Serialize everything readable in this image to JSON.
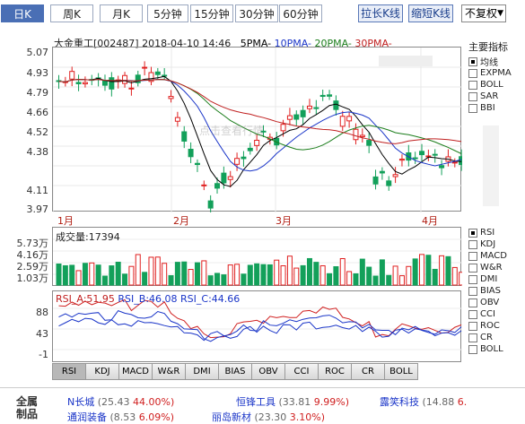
{
  "toolbar": {
    "periods": [
      "日K",
      "周K",
      "月K",
      "5分钟",
      "15分钟",
      "30分钟",
      "60分钟"
    ],
    "stretch_label": "拉长K线",
    "shrink_label": "缩短K线",
    "adjust_value": "不复权"
  },
  "chart": {
    "stock_name": "大金重工",
    "code": "[002487]",
    "datetime": "2018-04-10 14:46",
    "ma5": "5PMA",
    "ma10": "10PMA",
    "ma20": "20PMA",
    "ma30": "30PMA",
    "price_ticks": [
      "5.07",
      "4.93",
      "4.79",
      "4.66",
      "4.52",
      "4.38",
      "4.11",
      "3.97"
    ],
    "month_labels": [
      "1月",
      "2月",
      "3月",
      "4月"
    ],
    "watermark": "点击查看行情",
    "colors": {
      "up": "#e02020",
      "down": "#13a05a",
      "ma5": "#000000",
      "ma10": "#1a35c8",
      "ma20": "#1b7d1b",
      "ma30": "#c02020"
    }
  },
  "indicators": {
    "title": "主要指标",
    "items": [
      {
        "label": "均线",
        "checked": true
      },
      {
        "label": "EXPMA",
        "checked": false
      },
      {
        "label": "BOLL",
        "checked": false
      },
      {
        "label": "SAR",
        "checked": false
      },
      {
        "label": "BBI",
        "checked": false
      }
    ],
    "sub_items": [
      {
        "label": "RSI",
        "checked": true
      },
      {
        "label": "KDJ",
        "checked": false
      },
      {
        "label": "MACD",
        "checked": false
      },
      {
        "label": "W&R",
        "checked": false
      },
      {
        "label": "DMI",
        "checked": false
      },
      {
        "label": "BIAS",
        "checked": false
      },
      {
        "label": "OBV",
        "checked": false
      },
      {
        "label": "CCI",
        "checked": false
      },
      {
        "label": "ROC",
        "checked": false
      },
      {
        "label": "CR",
        "checked": false
      },
      {
        "label": "BOLL",
        "checked": false
      }
    ]
  },
  "volume": {
    "label": "成交量:17394",
    "ticks": [
      "5.73万",
      "4.16万",
      "2.59万",
      "1.03万"
    ]
  },
  "rsi": {
    "a": "RSI_A:51.95",
    "b": "RSI_B:46.08",
    "c": "RSI_C:44.66",
    "ticks": [
      "88",
      "43",
      "-1"
    ]
  },
  "tabs": [
    "RSI",
    "KDJ",
    "MACD",
    "W&R",
    "DMI",
    "BIAS",
    "OBV",
    "CCI",
    "ROC",
    "CR",
    "BOLL"
  ],
  "footer": {
    "section_label_1": "全属",
    "section_label_2": "制品",
    "stocks": [
      {
        "name": "N长城",
        "price": "(25.43",
        "pct": "44.00%)"
      },
      {
        "name": "恒锋工具",
        "price": "(33.81",
        "pct": "9.99%)"
      },
      {
        "name": "露笑科技",
        "price": "(14.88",
        "pct": "6."
      },
      {
        "name": "通润装备",
        "price": "(8.53",
        "pct": "6.09%)"
      },
      {
        "name": "丽岛新材",
        "price": "(23.30",
        "pct": "3.10%)"
      }
    ]
  }
}
